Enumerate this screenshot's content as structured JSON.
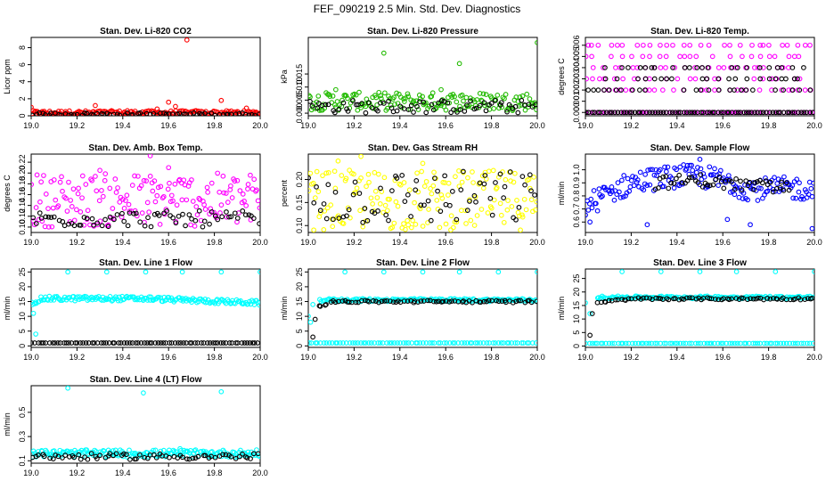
{
  "title": "FEF_090219  2.5 Min. Std. Dev. Diagnostics",
  "colors": {
    "black": "#000000",
    "red": "#ff0000",
    "green": "#22bb00",
    "magenta": "#ff00ff",
    "yellow": "#ffff00",
    "blue": "#0000ff",
    "cyan": "#00ffff"
  },
  "chart_data": [
    {
      "type": "scatter",
      "title": "Stan. Dev. Li-820 CO2",
      "ylabel": "Licor ppm",
      "xlim": [
        19.0,
        20.0
      ],
      "ylim": [
        0,
        9.2
      ],
      "xticks": [
        "19.0",
        "19.2",
        "19.4",
        "19.6",
        "19.8",
        "20.0"
      ],
      "yticks": [
        "0",
        "2",
        "4",
        "6",
        "8"
      ],
      "series": [
        {
          "color": "red",
          "points": [
            [
              19.0,
              1.0
            ],
            [
              19.02,
              0.5
            ],
            [
              19.05,
              0.4
            ],
            [
              19.1,
              0.3
            ],
            [
              19.15,
              0.5
            ],
            [
              19.2,
              0.4
            ],
            [
              19.28,
              1.2
            ],
            [
              19.35,
              0.5
            ],
            [
              19.42,
              0.6
            ],
            [
              19.5,
              0.5
            ],
            [
              19.55,
              0.8
            ],
            [
              19.6,
              1.6
            ],
            [
              19.63,
              1.1
            ],
            [
              19.68,
              8.9
            ],
            [
              19.72,
              0.6
            ],
            [
              19.8,
              0.5
            ],
            [
              19.83,
              1.8
            ],
            [
              19.9,
              0.5
            ],
            [
              19.94,
              0.9
            ],
            [
              19.97,
              0.5
            ],
            [
              20.0,
              0.3
            ]
          ],
          "band": {
            "min": 0.1,
            "max": 0.6
          }
        },
        {
          "color": "black",
          "band": {
            "min": 0.05,
            "max": 0.35
          }
        }
      ]
    },
    {
      "type": "scatter",
      "title": "Stan. Dev. Li-820 Pressure",
      "ylabel": "kPa",
      "xlim": [
        19.0,
        20.0
      ],
      "ylim": [
        -0.001,
        0.029
      ],
      "xticks": [
        "19.0",
        "19.2",
        "19.4",
        "19.6",
        "19.8",
        "20.0"
      ],
      "yticks": [
        "0.000",
        "0.005",
        "0.010",
        "0.015"
      ],
      "series": [
        {
          "color": "green",
          "points": [
            [
              19.33,
              0.023
            ],
            [
              19.66,
              0.019
            ],
            [
              20.0,
              0.027
            ],
            [
              19.58,
              0.009
            ],
            [
              19.12,
              0.009
            ]
          ],
          "band": {
            "min": 0.001,
            "max": 0.008
          }
        },
        {
          "color": "black",
          "band": {
            "min": 0.0,
            "max": 0.005
          }
        }
      ]
    },
    {
      "type": "scatter",
      "title": "Stan. Dev. Li-820 Temp.",
      "ylabel": "degrees C",
      "xlim": [
        19.0,
        20.0
      ],
      "ylim": [
        -0.0003,
        0.0067
      ],
      "xticks": [
        "19.0",
        "19.2",
        "19.4",
        "19.6",
        "19.8",
        "20.0"
      ],
      "yticks": [
        "0.000",
        "0.001",
        "0.002",
        "0.003",
        "0.004",
        "0.005",
        "0.006"
      ],
      "series": [
        {
          "color": "magenta",
          "levels": [
            0,
            0.002,
            0.003,
            0.004,
            0.005,
            0.006
          ]
        },
        {
          "color": "black",
          "levels": [
            0,
            0.002,
            0.003,
            0.004
          ]
        }
      ]
    },
    {
      "type": "scatter",
      "title": "Stan. Dev. Amb. Box Temp.",
      "ylabel": "degrees C",
      "xlim": [
        19.0,
        20.0
      ],
      "ylim": [
        0.09,
        0.235
      ],
      "xticks": [
        "19.0",
        "19.2",
        "19.4",
        "19.6",
        "19.8",
        "20.0"
      ],
      "yticks": [
        "0.10",
        "0.12",
        "0.14",
        "0.16",
        "0.18",
        "0.20",
        "0.22"
      ],
      "series": [
        {
          "color": "magenta",
          "points": [
            [
              19.52,
              0.232
            ],
            [
              19.6,
              0.21
            ],
            [
              19.3,
              0.205
            ]
          ],
          "band": {
            "min": 0.1,
            "max": 0.2
          }
        },
        {
          "color": "black",
          "band": {
            "min": 0.1,
            "max": 0.13
          }
        }
      ]
    },
    {
      "type": "scatter",
      "title": "Stan. Dev. Gas Stream RH",
      "ylabel": "percent",
      "xlim": [
        19.0,
        20.0
      ],
      "ylim": [
        0.085,
        0.255
      ],
      "xticks": [
        "19.0",
        "19.2",
        "19.4",
        "19.6",
        "19.8",
        "20.0"
      ],
      "yticks": [
        "0.10",
        "0.15",
        "0.20"
      ],
      "series": [
        {
          "color": "yellow",
          "points": [
            [
              19.23,
              0.25
            ],
            [
              19.13,
              0.24
            ],
            [
              19.5,
              0.235
            ]
          ],
          "band": {
            "min": 0.09,
            "max": 0.22
          }
        },
        {
          "color": "black",
          "band": {
            "min": 0.1,
            "max": 0.22
          }
        }
      ]
    },
    {
      "type": "scatter",
      "title": "Stan. Dev. Sample Flow",
      "ylabel": "ml/min",
      "xlim": [
        19.0,
        20.0
      ],
      "ylim": [
        0.52,
        1.12
      ],
      "xticks": [
        "19.0",
        "19.2",
        "19.4",
        "19.6",
        "19.8",
        "20.0"
      ],
      "yticks": [
        "0.6",
        "0.7",
        "0.8",
        "0.9",
        "1.0"
      ],
      "series": [
        {
          "color": "blue",
          "points": [
            [
              19.5,
              1.08
            ],
            [
              19.27,
              0.58
            ],
            [
              19.62,
              0.62
            ],
            [
              19.72,
              0.58
            ],
            [
              19.99,
              0.55
            ],
            [
              19.02,
              0.6
            ]
          ],
          "curve": [
            [
              19.0,
              0.72
            ],
            [
              19.1,
              0.82
            ],
            [
              19.2,
              0.9
            ],
            [
              19.3,
              0.93
            ],
            [
              19.4,
              0.95
            ],
            [
              19.5,
              0.95
            ],
            [
              19.6,
              0.92
            ],
            [
              19.7,
              0.86
            ],
            [
              19.8,
              0.85
            ],
            [
              19.9,
              0.86
            ],
            [
              20.0,
              0.85
            ]
          ],
          "spread": 0.09
        },
        {
          "color": "black",
          "curve": [
            [
              19.3,
              0.9
            ],
            [
              19.5,
              0.92
            ],
            [
              19.7,
              0.88
            ],
            [
              19.9,
              0.86
            ]
          ],
          "spread": 0.05
        }
      ]
    },
    {
      "type": "scatter",
      "title": "Stan. Dev. Line 1 Flow",
      "ylabel": "ml/min",
      "xlim": [
        19.0,
        20.0
      ],
      "ylim": [
        -0.5,
        26
      ],
      "xticks": [
        "19.0",
        "19.2",
        "19.4",
        "19.6",
        "19.8",
        "20.0"
      ],
      "yticks": [
        "0",
        "5",
        "10",
        "15",
        "20",
        "25"
      ],
      "series": [
        {
          "color": "cyan",
          "points": [
            [
              19.16,
              25
            ],
            [
              19.33,
              25
            ],
            [
              19.5,
              25
            ],
            [
              19.66,
              25
            ],
            [
              19.83,
              25
            ],
            [
              20.0,
              25
            ],
            [
              19.01,
              11
            ],
            [
              19.02,
              4
            ]
          ],
          "curve": [
            [
              19.0,
              14.5
            ],
            [
              19.05,
              16
            ],
            [
              19.5,
              16
            ],
            [
              20.0,
              14.5
            ]
          ],
          "spread": 0.8
        },
        {
          "color": "black",
          "levels": [
            1
          ]
        }
      ]
    },
    {
      "type": "scatter",
      "title": "Stan. Dev. Line 2 Flow",
      "ylabel": "ml/min",
      "xlim": [
        19.0,
        20.0
      ],
      "ylim": [
        -0.5,
        26
      ],
      "xticks": [
        "19.0",
        "19.2",
        "19.4",
        "19.6",
        "19.8",
        "20.0"
      ],
      "yticks": [
        "0",
        "5",
        "10",
        "15",
        "20",
        "25"
      ],
      "series": [
        {
          "color": "cyan",
          "points": [
            [
              19.16,
              25
            ],
            [
              19.33,
              25
            ],
            [
              19.5,
              25
            ],
            [
              19.66,
              25
            ],
            [
              19.83,
              25
            ],
            [
              20.0,
              25
            ],
            [
              19.0,
              10
            ],
            [
              19.01,
              8
            ],
            [
              19.02,
              14
            ]
          ],
          "levels": [
            1
          ],
          "curve": [
            [
              19.05,
              15.5
            ],
            [
              20.0,
              15.5
            ]
          ],
          "spread": 0.5
        },
        {
          "color": "black",
          "points": [
            [
              19.02,
              3
            ],
            [
              19.03,
              9
            ]
          ],
          "curve": [
            [
              19.04,
              13
            ],
            [
              19.1,
              15
            ],
            [
              20.0,
              15
            ]
          ],
          "spread": 0.4
        }
      ]
    },
    {
      "type": "scatter",
      "title": "Stan. Dev. Line 3 Flow",
      "ylabel": "ml/min",
      "xlim": [
        19.0,
        20.0
      ],
      "ylim": [
        -0.5,
        28.5
      ],
      "xticks": [
        "19.0",
        "19.2",
        "19.4",
        "19.6",
        "19.8",
        "20.0"
      ],
      "yticks": [
        "0",
        "5",
        "10",
        "15",
        "20",
        "25"
      ],
      "series": [
        {
          "color": "cyan",
          "points": [
            [
              19.16,
              27.5
            ],
            [
              19.33,
              27.5
            ],
            [
              19.5,
              27.5
            ],
            [
              19.66,
              27.5
            ],
            [
              19.83,
              27.5
            ],
            [
              20.0,
              27.5
            ],
            [
              19.0,
              16
            ],
            [
              19.02,
              12
            ]
          ],
          "levels": [
            1
          ],
          "curve": [
            [
              19.05,
              18
            ],
            [
              20.0,
              18
            ]
          ],
          "spread": 0.5
        },
        {
          "color": "black",
          "points": [
            [
              19.02,
              4
            ],
            [
              19.03,
              12
            ]
          ],
          "curve": [
            [
              19.05,
              16
            ],
            [
              19.2,
              17.5
            ],
            [
              20.0,
              17.5
            ]
          ],
          "spread": 0.4
        }
      ]
    },
    {
      "type": "scatter",
      "title": "Stan. Dev. Line 4 (LT) Flow",
      "ylabel": "ml/min",
      "xlim": [
        19.0,
        20.0
      ],
      "ylim": [
        0.08,
        0.72
      ],
      "xticks": [
        "19.0",
        "19.2",
        "19.4",
        "19.6",
        "19.8",
        "20.0"
      ],
      "yticks": [
        "0.1",
        "0.3",
        "0.5"
      ],
      "series": [
        {
          "color": "cyan",
          "points": [
            [
              19.16,
              0.7
            ],
            [
              19.49,
              0.66
            ],
            [
              19.83,
              0.67
            ],
            [
              19.65,
              0.2
            ],
            [
              19.01,
              0.18
            ]
          ],
          "band": {
            "min": 0.13,
            "max": 0.19
          }
        },
        {
          "color": "black",
          "band": {
            "min": 0.11,
            "max": 0.16
          }
        }
      ]
    }
  ]
}
